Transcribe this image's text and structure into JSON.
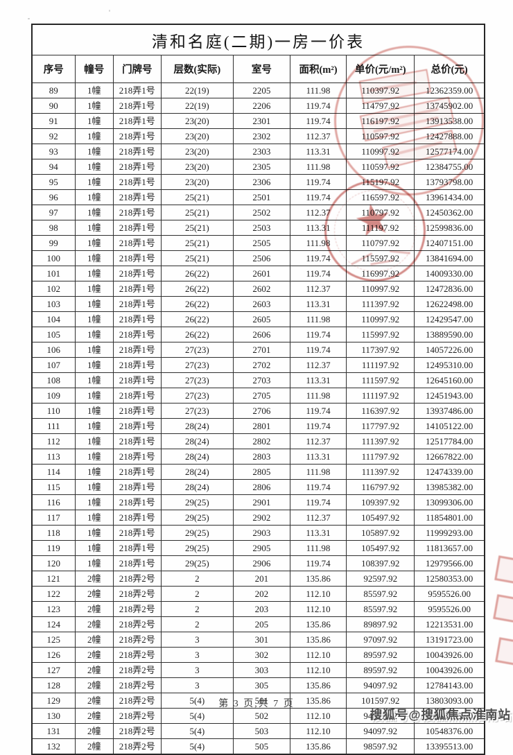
{
  "page": {
    "title": "清和名庭(二期)一房一价表",
    "footer": {
      "page_indicator": "第 3 页,共 7 页",
      "watermark": "搜狐号@搜狐焦点淮南站"
    }
  },
  "table": {
    "columns": [
      "序号",
      "幢号",
      "门牌号",
      "层数(实际)",
      "室号",
      "面积(m²)",
      "单价(元/m²)",
      "总价(元)"
    ],
    "rows": [
      [
        "89",
        "1幢",
        "218弄1号",
        "22(19)",
        "2205",
        "111.98",
        "110397.92",
        "12362359.00"
      ],
      [
        "90",
        "1幢",
        "218弄1号",
        "22(19)",
        "2206",
        "119.74",
        "114797.92",
        "13745902.00"
      ],
      [
        "91",
        "1幢",
        "218弄1号",
        "23(20)",
        "2301",
        "119.74",
        "116197.92",
        "13913538.00"
      ],
      [
        "92",
        "1幢",
        "218弄1号",
        "23(20)",
        "2302",
        "112.37",
        "110597.92",
        "12427888.00"
      ],
      [
        "93",
        "1幢",
        "218弄1号",
        "23(20)",
        "2303",
        "113.31",
        "110997.92",
        "12577174.00"
      ],
      [
        "94",
        "1幢",
        "218弄1号",
        "23(20)",
        "2305",
        "111.98",
        "110597.92",
        "12384755.00"
      ],
      [
        "95",
        "1幢",
        "218弄1号",
        "23(20)",
        "2306",
        "119.74",
        "115197.92",
        "13793798.00"
      ],
      [
        "96",
        "1幢",
        "218弄1号",
        "25(21)",
        "2501",
        "119.74",
        "116597.92",
        "13961434.00"
      ],
      [
        "97",
        "1幢",
        "218弄1号",
        "25(21)",
        "2502",
        "112.37",
        "110797.92",
        "12450362.00"
      ],
      [
        "98",
        "1幢",
        "218弄1号",
        "25(21)",
        "2503",
        "113.31",
        "111197.92",
        "12599836.00"
      ],
      [
        "99",
        "1幢",
        "218弄1号",
        "25(21)",
        "2505",
        "111.98",
        "110797.92",
        "12407151.00"
      ],
      [
        "100",
        "1幢",
        "218弄1号",
        "25(21)",
        "2506",
        "119.74",
        "115597.92",
        "13841694.00"
      ],
      [
        "101",
        "1幢",
        "218弄1号",
        "26(22)",
        "2601",
        "119.74",
        "116997.92",
        "14009330.00"
      ],
      [
        "102",
        "1幢",
        "218弄1号",
        "26(22)",
        "2602",
        "112.37",
        "110997.92",
        "12472836.00"
      ],
      [
        "103",
        "1幢",
        "218弄1号",
        "26(22)",
        "2603",
        "113.31",
        "111397.92",
        "12622498.00"
      ],
      [
        "104",
        "1幢",
        "218弄1号",
        "26(22)",
        "2605",
        "111.98",
        "110997.92",
        "12429547.00"
      ],
      [
        "105",
        "1幢",
        "218弄1号",
        "26(22)",
        "2606",
        "119.74",
        "115997.92",
        "13889590.00"
      ],
      [
        "106",
        "1幢",
        "218弄1号",
        "27(23)",
        "2701",
        "119.74",
        "117397.92",
        "14057226.00"
      ],
      [
        "107",
        "1幢",
        "218弄1号",
        "27(23)",
        "2702",
        "112.37",
        "111197.92",
        "12495310.00"
      ],
      [
        "108",
        "1幢",
        "218弄1号",
        "27(23)",
        "2703",
        "113.31",
        "111597.92",
        "12645160.00"
      ],
      [
        "109",
        "1幢",
        "218弄1号",
        "27(23)",
        "2705",
        "111.98",
        "111197.92",
        "12451943.00"
      ],
      [
        "110",
        "1幢",
        "218弄1号",
        "27(23)",
        "2706",
        "119.74",
        "116397.92",
        "13937486.00"
      ],
      [
        "111",
        "1幢",
        "218弄1号",
        "28(24)",
        "2801",
        "119.74",
        "117797.92",
        "14105122.00"
      ],
      [
        "112",
        "1幢",
        "218弄1号",
        "28(24)",
        "2802",
        "112.37",
        "111397.92",
        "12517784.00"
      ],
      [
        "113",
        "1幢",
        "218弄1号",
        "28(24)",
        "2803",
        "113.31",
        "111797.92",
        "12667822.00"
      ],
      [
        "114",
        "1幢",
        "218弄1号",
        "28(24)",
        "2805",
        "111.98",
        "111397.92",
        "12474339.00"
      ],
      [
        "115",
        "1幢",
        "218弄1号",
        "28(24)",
        "2806",
        "119.74",
        "116797.92",
        "13985382.00"
      ],
      [
        "116",
        "1幢",
        "218弄1号",
        "29(25)",
        "2901",
        "119.74",
        "109397.92",
        "13099306.00"
      ],
      [
        "117",
        "1幢",
        "218弄1号",
        "29(25)",
        "2902",
        "112.37",
        "105497.92",
        "11854801.00"
      ],
      [
        "118",
        "1幢",
        "218弄1号",
        "29(25)",
        "2903",
        "113.31",
        "105897.92",
        "11999293.00"
      ],
      [
        "119",
        "1幢",
        "218弄1号",
        "29(25)",
        "2905",
        "111.98",
        "105497.92",
        "11813657.00"
      ],
      [
        "120",
        "1幢",
        "218弄1号",
        "29(25)",
        "2906",
        "119.74",
        "108397.92",
        "12979566.00"
      ],
      [
        "121",
        "2幢",
        "218弄2号",
        "2",
        "201",
        "135.86",
        "92597.92",
        "12580353.00"
      ],
      [
        "122",
        "2幢",
        "218弄2号",
        "2",
        "202",
        "112.10",
        "85597.92",
        "9595526.00"
      ],
      [
        "123",
        "2幢",
        "218弄2号",
        "2",
        "203",
        "112.10",
        "85597.92",
        "9595526.00"
      ],
      [
        "124",
        "2幢",
        "218弄2号",
        "2",
        "205",
        "135.86",
        "89897.92",
        "12213531.00"
      ],
      [
        "125",
        "2幢",
        "218弄2号",
        "3",
        "301",
        "135.86",
        "97097.92",
        "13191723.00"
      ],
      [
        "126",
        "2幢",
        "218弄2号",
        "3",
        "302",
        "112.10",
        "89597.92",
        "10043926.00"
      ],
      [
        "127",
        "2幢",
        "218弄2号",
        "3",
        "303",
        "112.10",
        "89597.92",
        "10043926.00"
      ],
      [
        "128",
        "2幢",
        "218弄2号",
        "3",
        "305",
        "135.86",
        "94097.92",
        "12784143.00"
      ],
      [
        "129",
        "2幢",
        "218弄2号",
        "5(4)",
        "501",
        "135.86",
        "101597.92",
        "13803093.00"
      ],
      [
        "130",
        "2幢",
        "218弄2号",
        "5(4)",
        "502",
        "112.10",
        "94097.92",
        "10548376.00"
      ],
      [
        "131",
        "2幢",
        "218弄2号",
        "5(4)",
        "503",
        "112.10",
        "94097.92",
        "10548376.00"
      ],
      [
        "132",
        "2幢",
        "218弄2号",
        "5(4)",
        "505",
        "135.86",
        "98597.92",
        "13395513.00"
      ]
    ],
    "column_keys": [
      "index",
      "building",
      "address",
      "floors",
      "room",
      "area",
      "unit-price",
      "total-price"
    ]
  },
  "decorations": {
    "seal_color": "#bb443e",
    "star_glyph": "★",
    "seals": [
      {
        "name": "official-round-seal-faint",
        "shape": "circle-with-text-blocks"
      },
      {
        "name": "official-round-seal-star",
        "shape": "circle-with-star"
      },
      {
        "name": "edge-partial-seal",
        "shape": "clipped-marks"
      }
    ]
  }
}
